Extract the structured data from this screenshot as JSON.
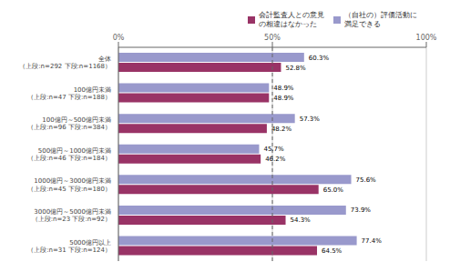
{
  "chart_data": {
    "type": "bar",
    "orientation": "horizontal",
    "categories": [
      "全体\n（上段:n=292 下段:n=1168）",
      "100億円未満\n（上段:n=47 下段:n=188）",
      "100億円～500億円未満\n（上段:n=96 下段:n=384）",
      "500億円～1000億円未満\n（上段:n=46 下段:n=184）",
      "1000億円～3000億円未満\n（上段:n=45 下段:n=180）",
      "3000億円～5000億円未満\n（上段:n=23 下段:n=92）",
      "5000億円以上\n（上段:n=31 下段:n=124）"
    ],
    "series": [
      {
        "name": "（自社の）評価活動に\n満足できる",
        "color": "#9999CC",
        "values": [
          60.3,
          48.9,
          57.3,
          45.7,
          75.6,
          73.9,
          77.4
        ],
        "value_labels": [
          "60.3%",
          "48.9%",
          "57.3%",
          "45.7%",
          "75.6%",
          "73.9%",
          "77.4%"
        ]
      },
      {
        "name": "会計監査人との意見\nの相違はなかった",
        "color": "#993366",
        "values": [
          52.8,
          48.9,
          48.2,
          46.2,
          65.0,
          54.3,
          64.5
        ],
        "value_labels": [
          "52.8%",
          "48.9%",
          "48.2%",
          "46.2%",
          "65.0%",
          "54.3%",
          "64.5%"
        ]
      }
    ],
    "xlim": [
      0,
      100
    ],
    "xticks": [
      {
        "value": 0,
        "label": "0%"
      },
      {
        "value": 50,
        "label": "50%"
      },
      {
        "value": 100,
        "label": "100%"
      }
    ],
    "grid": true,
    "legend": "upper right",
    "data_labels": true,
    "reference_lines": [
      {
        "x": 50,
        "line_style": "dashed"
      }
    ]
  }
}
